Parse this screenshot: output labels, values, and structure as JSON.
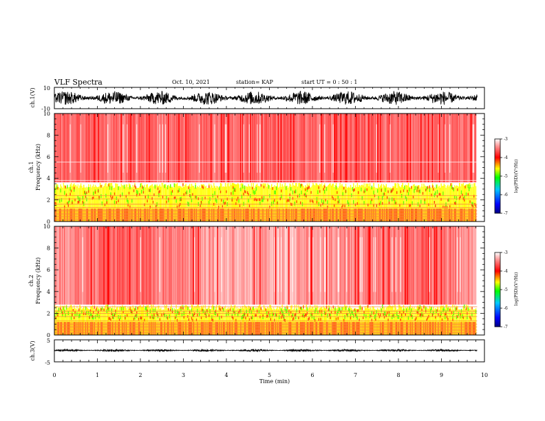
{
  "header": {
    "title": "VLF Spectra",
    "date": "Oct. 10, 2021",
    "station": "station= KAP",
    "start": "start  UT =   0 : 50 : 1"
  },
  "chart_data": [
    {
      "type": "line",
      "name": "ch1-waveform",
      "ylabel": "ch.1(V)",
      "ylim": [
        -10,
        10
      ],
      "yticks": [
        "10",
        "-10"
      ],
      "xlim": [
        0,
        10
      ]
    },
    {
      "type": "heatmap",
      "name": "ch1-spectrogram",
      "ylabel": "ch.1\nFrequency (kHz)",
      "ylim": [
        0,
        10
      ],
      "yticks": [
        "0",
        "2",
        "4",
        "6",
        "8",
        "10"
      ],
      "xlim": [
        0,
        10
      ],
      "data_end_min": 9.83,
      "colorbar": {
        "label": "log(PSD)(V²/Hz)",
        "range": [
          -7,
          -3
        ],
        "ticks": [
          "-3",
          "-4",
          "-5",
          "-6",
          "-7"
        ]
      }
    },
    {
      "type": "heatmap",
      "name": "ch2-spectrogram",
      "ylabel": "ch.2\nFrequency (kHz)",
      "ylim": [
        0,
        10
      ],
      "yticks": [
        "0",
        "2",
        "4",
        "6",
        "8",
        "10"
      ],
      "xlim": [
        0,
        10
      ],
      "data_end_min": 9.83,
      "colorbar": {
        "label": "log(PSD)(V²/Hz)",
        "range": [
          -7,
          -3
        ],
        "ticks": [
          "-3",
          "-4",
          "-5",
          "-6",
          "-7"
        ]
      }
    },
    {
      "type": "line",
      "name": "ch3-waveform",
      "ylabel": "ch.3(V)",
      "ylim": [
        -5,
        5
      ],
      "yticks": [
        "5",
        "-5"
      ],
      "xlim": [
        0,
        10
      ],
      "xlabel": "Time (min)",
      "xticks": [
        "0",
        "1",
        "2",
        "3",
        "4",
        "5",
        "6",
        "7",
        "8",
        "9",
        "10"
      ]
    }
  ],
  "colors": {
    "spectrum": [
      "#000080",
      "#0000ff",
      "#00c8ff",
      "#00ff00",
      "#ffff00",
      "#ff0000",
      "#ffffff"
    ]
  }
}
